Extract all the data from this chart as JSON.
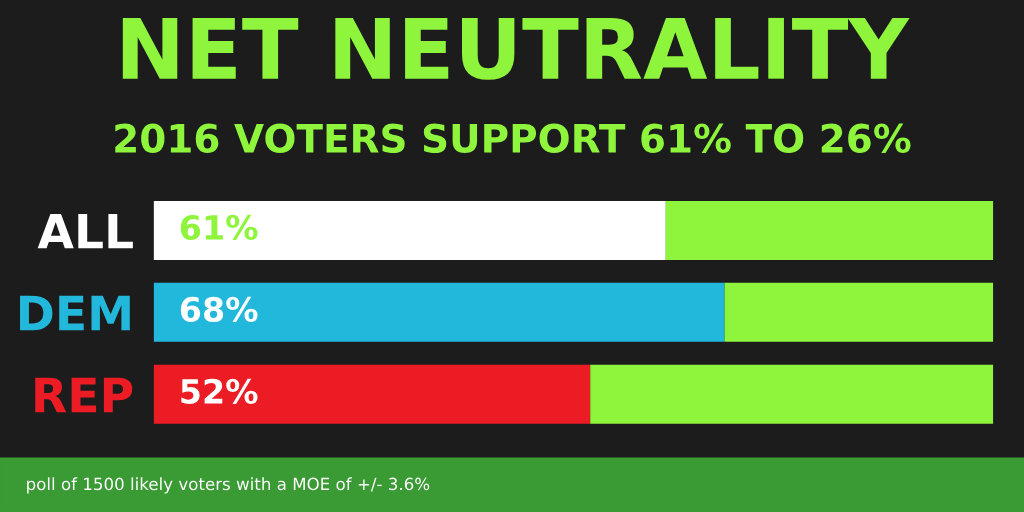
{
  "chart_data": {
    "type": "bar",
    "orientation": "horizontal",
    "stacked": true,
    "xlim": [
      0,
      100
    ],
    "legend": false,
    "grid": false,
    "title": "NET NEUTRALITY",
    "subtitle": "2016 VOTERS SUPPORT 61% TO 26%",
    "categories": [
      "ALL",
      "DEM",
      "REP"
    ],
    "series": [
      {
        "colors": [
          "#ffffff",
          "#22b8dc",
          "#ec1c24"
        ],
        "values": [
          61,
          68,
          52
        ],
        "value_labels": [
          "61%",
          "68%",
          "52%"
        ]
      },
      {
        "color": "#8ef53c",
        "values": [
          39,
          32,
          48
        ]
      }
    ],
    "annotations": [
      "poll of 1500 likely voters with a MOE of +/- 3.6%"
    ]
  }
}
